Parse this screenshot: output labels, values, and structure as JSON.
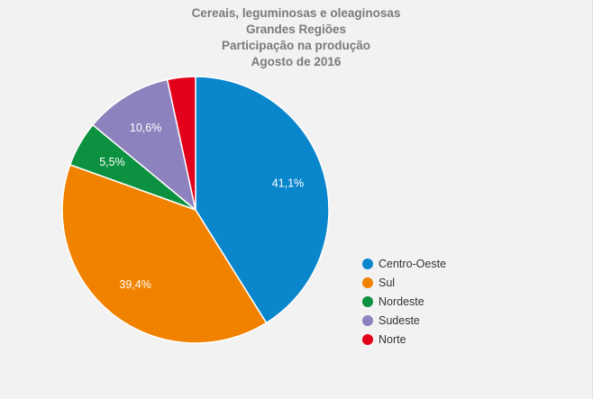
{
  "chart_data": {
    "type": "pie",
    "title_lines": [
      "Cereais, leguminosas e oleaginosas",
      "Grandes Regiões",
      "Participação na produção",
      "Agosto de 2016"
    ],
    "categories": [
      "Centro-Oeste",
      "Sul",
      "Nordeste",
      "Sudeste",
      "Norte"
    ],
    "values": [
      41.1,
      39.4,
      5.5,
      10.6,
      3.4
    ],
    "labels": [
      "41,1%",
      "39,4%",
      "5,5%",
      "10,6%",
      ""
    ],
    "colors": [
      "#0a86cd",
      "#f08200",
      "#0c9140",
      "#8e82be",
      "#e3001b"
    ],
    "legend_position": "right"
  }
}
